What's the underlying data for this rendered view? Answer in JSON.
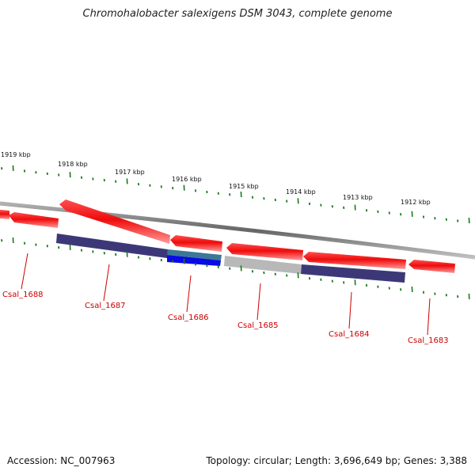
{
  "title": "Chromohalobacter salexigens DSM 3043, complete genome",
  "accession": "Accession: NC_007963",
  "topology": "Topology: circular; Length: 3,696,649 bp; Genes: 3,388",
  "colors": {
    "cds_red": "#ee1111",
    "cds_red_light": "#ff9a9a",
    "feature_navy": "#3c3878",
    "feature_blue": "#0a0ae6",
    "feature_teal": "#3c7896",
    "feature_gray": "#b8b8b8",
    "backbone": "#8a8a8a",
    "tick_green": "#1a7a1a",
    "label_red": "#cc0000"
  },
  "scale_labels": [
    "1919 kbp",
    "1918 kbp",
    "1917 kbp",
    "1916 kbp",
    "1915 kbp",
    "1914 kbp",
    "1913 kbp",
    "1912 kbp"
  ],
  "gene_labels": [
    "Csal_1688",
    "Csal_1687",
    "Csal_1686",
    "Csal_1685",
    "Csal_1684",
    "Csal_1683"
  ]
}
